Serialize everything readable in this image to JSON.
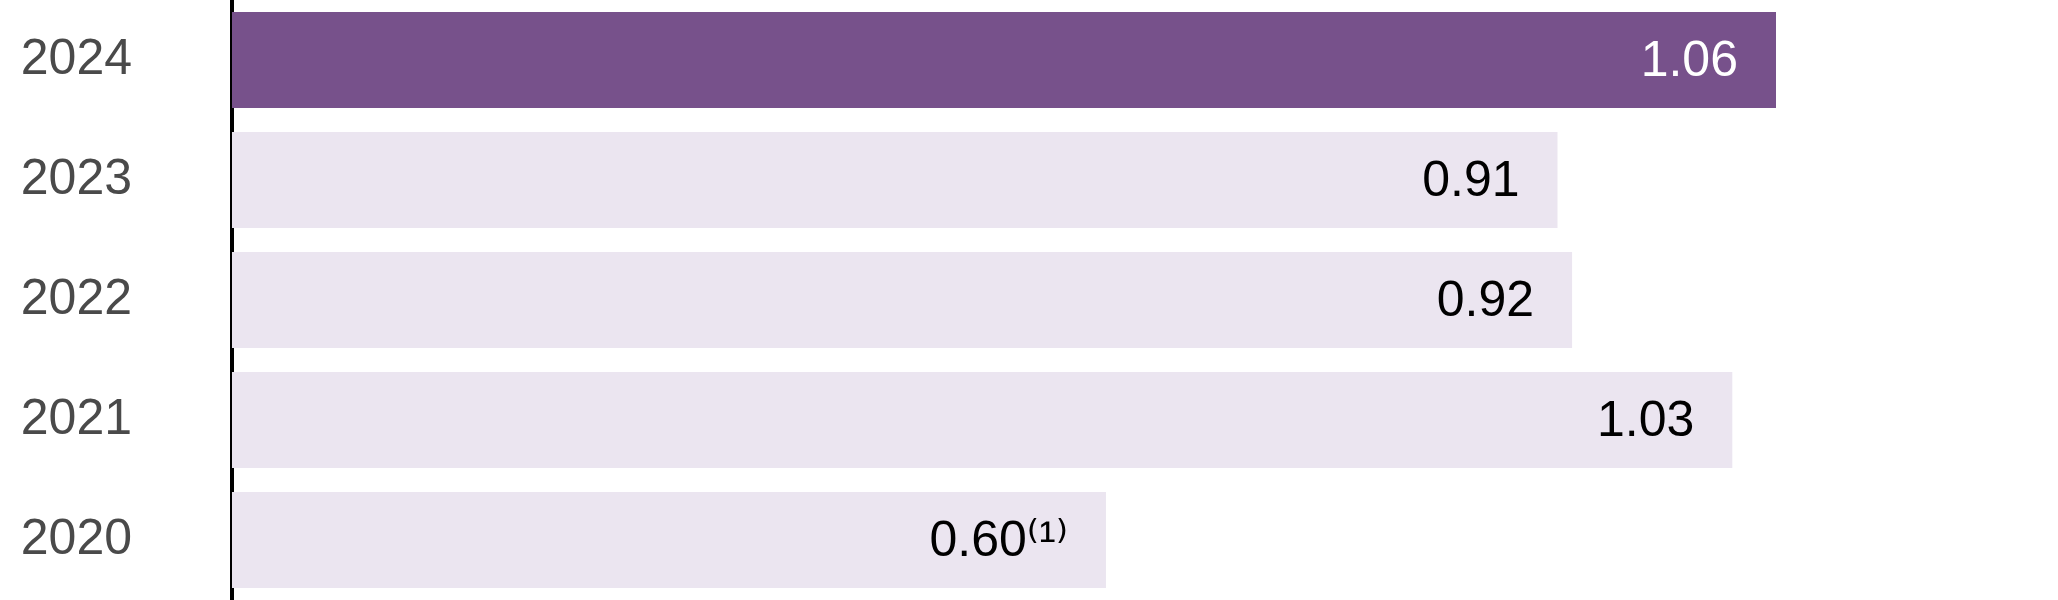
{
  "chart_data": {
    "type": "bar",
    "orientation": "horizontal",
    "categories": [
      "2024",
      "2023",
      "2022",
      "2021",
      "2020"
    ],
    "values": [
      1.06,
      0.91,
      0.92,
      1.03,
      0.6
    ],
    "colors": [
      "#77518b",
      "#ebe5f0",
      "#ebe5f0",
      "#ebe5f0",
      "#ebe5f0"
    ],
    "value_labels": [
      "1.06",
      "0.91",
      "0.92",
      "1.03",
      "0.60⁽¹⁾"
    ],
    "tick_labels": "y"
  }
}
